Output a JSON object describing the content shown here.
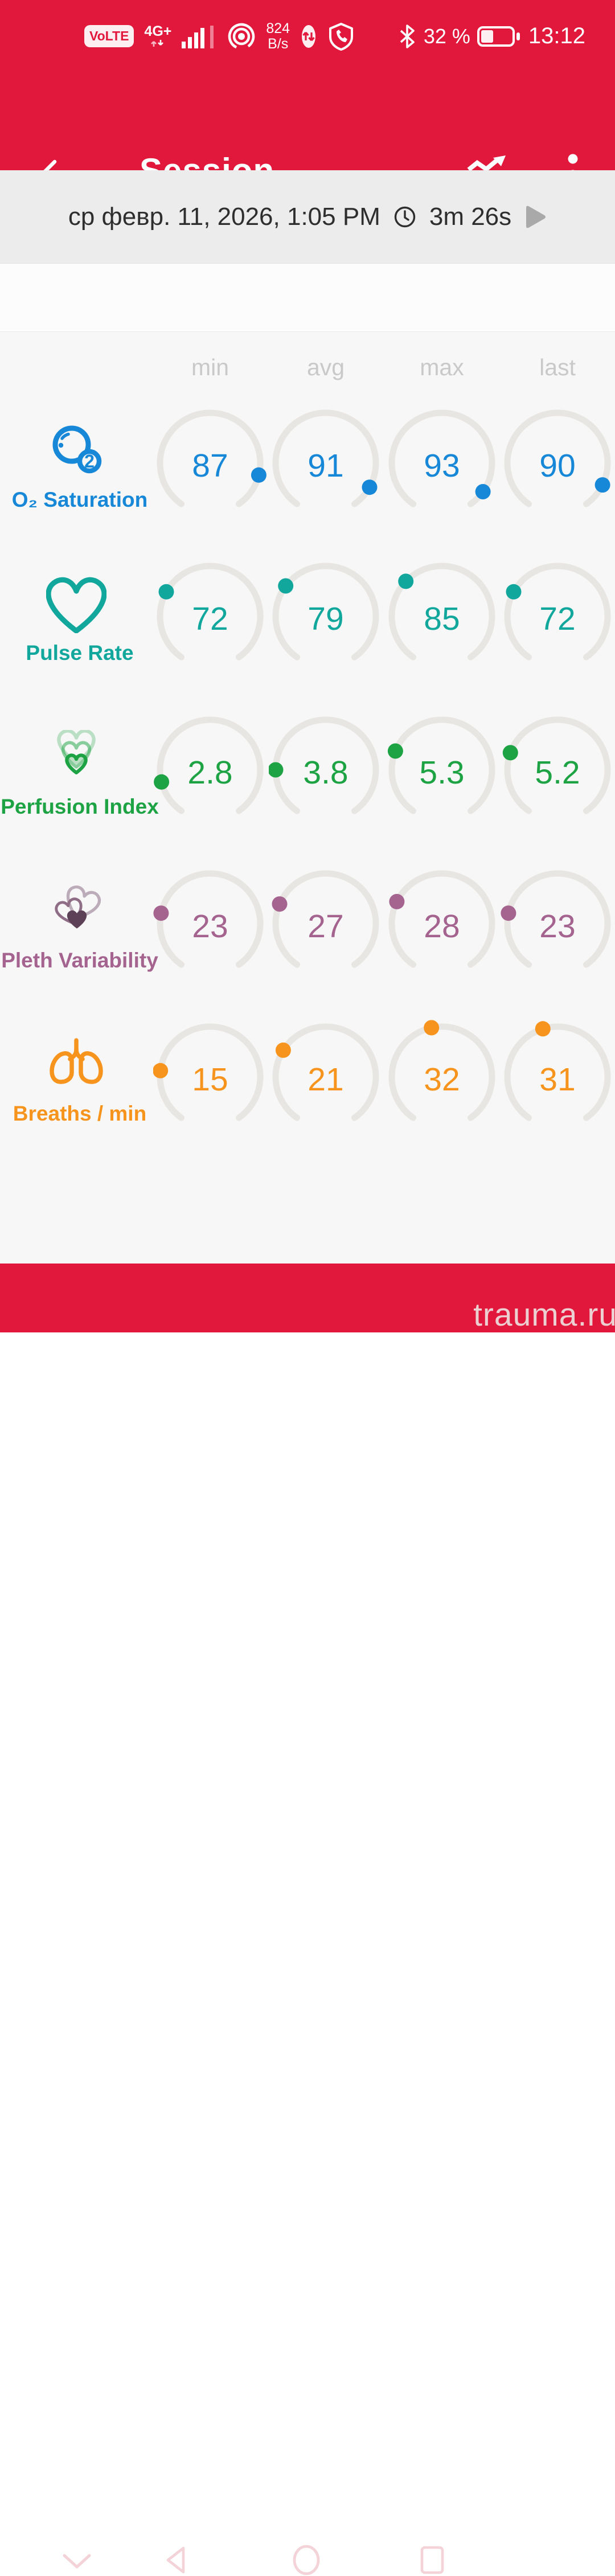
{
  "colors": {
    "primary_red": "#e2173c",
    "gauge_track": "#e8e6e2",
    "header_text": "#c9c9c9",
    "o2_blue": "#1787d7",
    "pulse_teal": "#12a79d",
    "perfusion_green": "#1ea344",
    "pleth_mauve": "#a4648f",
    "breaths_orange": "#f7941d"
  },
  "status_bar": {
    "volte": "VoLTE",
    "network": "4G+",
    "rate_value": "824",
    "rate_unit": "B/s",
    "battery": "32 %",
    "time": "13:12"
  },
  "app_bar": {
    "title": "Session"
  },
  "session_bar": {
    "datetime": "ср февр. 11, 2026, 1:05 PM",
    "duration": "3m 26s"
  },
  "metrics": {
    "columns": [
      "min",
      "avg",
      "max",
      "last"
    ],
    "rows": [
      {
        "id": "o2-saturation",
        "label": "O₂ Saturation",
        "color": "#1787d7",
        "icon": "o2-icon",
        "cells": [
          {
            "col": "min",
            "value": "87",
            "angle": 104
          },
          {
            "col": "avg",
            "value": "91",
            "angle": 119
          },
          {
            "col": "max",
            "value": "93",
            "angle": 125
          },
          {
            "col": "last",
            "value": "90",
            "angle": 116
          }
        ]
      },
      {
        "id": "pulse-rate",
        "label": "Pulse Rate",
        "color": "#12a79d",
        "icon": "heart-icon",
        "cells": [
          {
            "col": "min",
            "value": "72",
            "angle": -61
          },
          {
            "col": "avg",
            "value": "79",
            "angle": -53
          },
          {
            "col": "max",
            "value": "85",
            "angle": -46
          },
          {
            "col": "last",
            "value": "72",
            "angle": -61
          }
        ]
      },
      {
        "id": "perfusion-index",
        "label": "Perfusion Index",
        "color": "#1ea344",
        "icon": "nested-hearts-icon",
        "cells": [
          {
            "col": "min",
            "value": "2.8",
            "angle": -104
          },
          {
            "col": "avg",
            "value": "3.8",
            "angle": -90
          },
          {
            "col": "max",
            "value": "5.3",
            "angle": -68
          },
          {
            "col": "last",
            "value": "5.2",
            "angle": -70
          }
        ]
      },
      {
        "id": "pleth-variability",
        "label": "Pleth Variability",
        "color": "#a4648f",
        "icon": "overlap-hearts-icon",
        "cells": [
          {
            "col": "min",
            "value": "23",
            "angle": -78
          },
          {
            "col": "avg",
            "value": "27",
            "angle": -67
          },
          {
            "col": "max",
            "value": "28",
            "angle": -64
          },
          {
            "col": "last",
            "value": "23",
            "angle": -78
          }
        ]
      },
      {
        "id": "breaths-per-min",
        "label": "Breaths / min",
        "color": "#f7941d",
        "icon": "lungs-icon",
        "cells": [
          {
            "col": "min",
            "value": "15",
            "angle": -83
          },
          {
            "col": "avg",
            "value": "21",
            "angle": -58
          },
          {
            "col": "max",
            "value": "32",
            "angle": -12
          },
          {
            "col": "last",
            "value": "31",
            "angle": -17
          }
        ]
      }
    ]
  },
  "nav_bar": {
    "watermark": "trauma.ru"
  }
}
